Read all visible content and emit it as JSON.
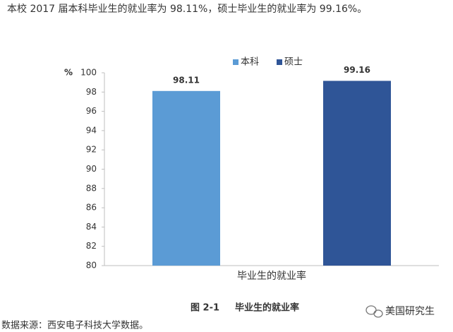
{
  "intro": "本校 2017 届本科毕业生的就业率为 98.11%，硕士毕业生的就业率为 99.16%。",
  "chart_data": {
    "type": "bar",
    "y_label": "%",
    "categories": [
      "毕业生的就业率"
    ],
    "series": [
      {
        "name": "本科",
        "color": "#5b9bd5",
        "values": [
          98.11
        ]
      },
      {
        "name": "硕士",
        "color": "#2f5597",
        "values": [
          99.16
        ]
      }
    ],
    "ylim": [
      80,
      100
    ],
    "yticks": [
      80,
      82,
      84,
      86,
      88,
      90,
      92,
      94,
      96,
      98,
      100
    ],
    "grid": false,
    "legend": "top"
  },
  "caption": {
    "label": "图 2-1",
    "text": "毕业生的就业率"
  },
  "source": "数据来源：西安电子科技大学数据。",
  "watermark": "美国研究生"
}
